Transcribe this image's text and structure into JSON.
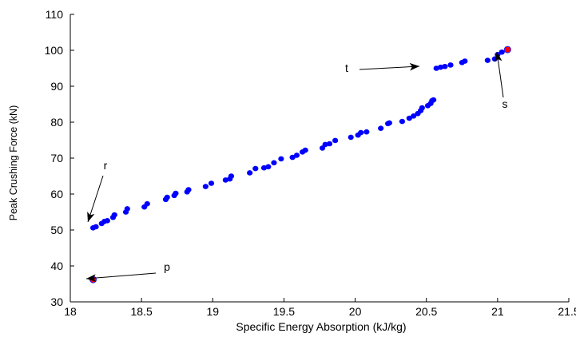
{
  "chart_data": {
    "type": "scatter",
    "title": "",
    "xlabel": "Specific Energy Absorption (kJ/kg)",
    "ylabel": "Peak Crushing Force (kN)",
    "xlim": [
      18,
      21.5
    ],
    "ylim": [
      30,
      110
    ],
    "xticks": [
      "18",
      "18.5",
      "19",
      "19.5",
      "20",
      "20.5",
      "21",
      "21.5"
    ],
    "yticks": [
      "30",
      "40",
      "50",
      "60",
      "70",
      "80",
      "90",
      "100",
      "110"
    ],
    "grid": false,
    "legend": "none",
    "series": [
      {
        "color": "#0000ff",
        "points": [
          [
            18.16,
            50.6
          ],
          [
            18.18,
            50.9
          ],
          [
            18.22,
            51.8
          ],
          [
            18.24,
            52.4
          ],
          [
            18.26,
            52.6
          ],
          [
            18.3,
            53.5
          ],
          [
            18.31,
            54.2
          ],
          [
            18.39,
            55.0
          ],
          [
            18.4,
            55.9
          ],
          [
            18.52,
            56.4
          ],
          [
            18.54,
            57.3
          ],
          [
            18.67,
            58.5
          ],
          [
            18.68,
            59.1
          ],
          [
            18.73,
            59.6
          ],
          [
            18.74,
            60.2
          ],
          [
            18.82,
            60.6
          ],
          [
            18.83,
            61.2
          ],
          [
            18.95,
            62.1
          ],
          [
            18.99,
            63.0
          ],
          [
            19.09,
            63.9
          ],
          [
            19.12,
            64.2
          ],
          [
            19.13,
            65.0
          ],
          [
            19.26,
            65.9
          ],
          [
            19.3,
            67.1
          ],
          [
            19.36,
            67.3
          ],
          [
            19.39,
            67.6
          ],
          [
            19.43,
            68.7
          ],
          [
            19.48,
            69.8
          ],
          [
            19.56,
            70.2
          ],
          [
            19.59,
            70.8
          ],
          [
            19.63,
            71.7
          ],
          [
            19.65,
            72.2
          ],
          [
            19.77,
            72.8
          ],
          [
            19.79,
            73.8
          ],
          [
            19.82,
            74.0
          ],
          [
            19.86,
            74.9
          ],
          [
            19.97,
            75.8
          ],
          [
            20.02,
            76.4
          ],
          [
            20.04,
            77.1
          ],
          [
            20.08,
            77.3
          ],
          [
            20.18,
            78.3
          ],
          [
            20.23,
            79.6
          ],
          [
            20.24,
            79.8
          ],
          [
            20.33,
            80.2
          ],
          [
            20.38,
            81.1
          ],
          [
            20.41,
            81.7
          ],
          [
            20.44,
            82.4
          ],
          [
            20.46,
            83.2
          ],
          [
            20.47,
            84.0
          ],
          [
            20.51,
            84.6
          ],
          [
            20.53,
            85.2
          ],
          [
            20.54,
            86.0
          ],
          [
            20.55,
            86.2
          ],
          [
            20.57,
            95.0
          ],
          [
            20.6,
            95.3
          ],
          [
            20.63,
            95.5
          ],
          [
            20.67,
            95.9
          ],
          [
            20.75,
            96.6
          ],
          [
            20.77,
            97.0
          ],
          [
            20.93,
            97.2
          ],
          [
            20.98,
            97.6
          ],
          [
            21.0,
            98.8
          ],
          [
            21.03,
            99.5
          ]
        ]
      }
    ],
    "highlight_points": [
      {
        "label": "p",
        "x": 18.16,
        "y": 36.2,
        "color": "#ff0000"
      },
      {
        "label": "s",
        "x": 21.07,
        "y": 100.2,
        "color": "#ff0000"
      }
    ],
    "annotations": [
      {
        "text": "p",
        "arrow_to": [
          18.16,
          36.2
        ]
      },
      {
        "text": "r",
        "arrow_to": [
          18.16,
          50.6
        ]
      },
      {
        "text": "t",
        "arrow_to": [
          20.56,
          95.0
        ]
      },
      {
        "text": "s",
        "arrow_to": [
          21.07,
          100.2
        ]
      }
    ]
  }
}
